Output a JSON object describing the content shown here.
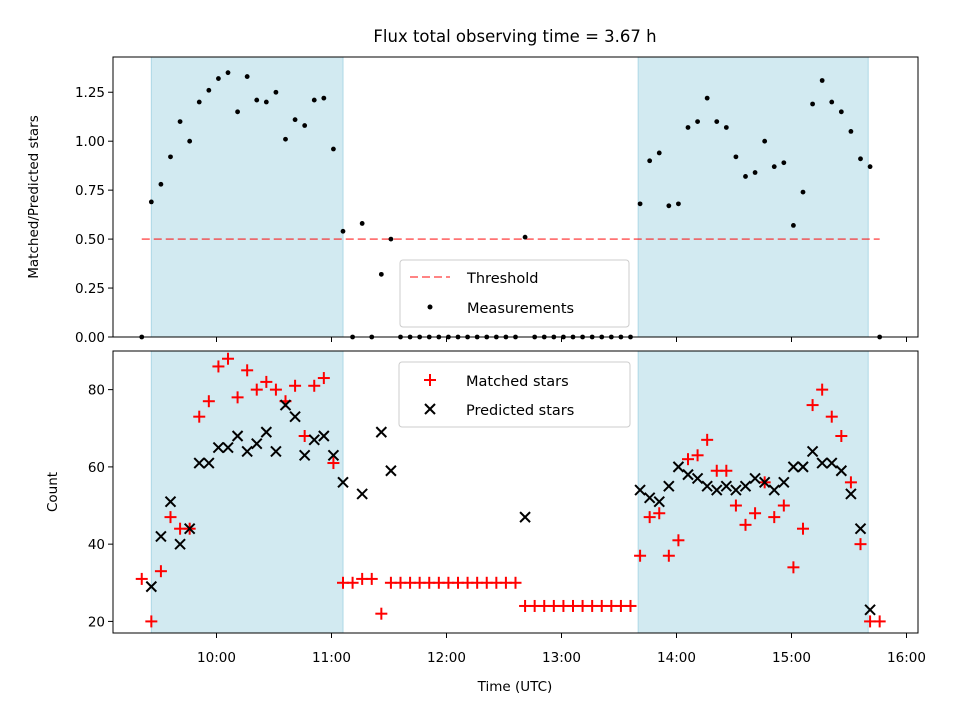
{
  "figure": {
    "title": "Flux total observing time = 3.67 h"
  },
  "colors": {
    "shade": "#add8e6",
    "threshold": "#ff0000",
    "matched": "#ff0000",
    "predicted": "#000000",
    "measurement": "#000000"
  },
  "chart_data": [
    {
      "type": "scatter",
      "ylabel": "Matched/Predicted stars",
      "xlabel": "",
      "xlim": [
        "09:06",
        "16:06"
      ],
      "ylim": [
        0,
        1.43
      ],
      "yticks": [
        0.0,
        0.25,
        0.5,
        0.75,
        1.0,
        1.25
      ],
      "ytick_labels": [
        "0.00",
        "0.25",
        "0.50",
        "0.75",
        "1.00",
        "1.25"
      ],
      "grid": false,
      "legend": {
        "placement": "lower center",
        "entries": [
          "Threshold",
          "Measurements"
        ]
      },
      "shaded_intervals": [
        [
          "09:26",
          "11:06"
        ],
        [
          "13:40",
          "15:40"
        ]
      ],
      "threshold": {
        "name": "Threshold",
        "value": 0.5,
        "x_start": "09:21",
        "x_end": "15:46"
      },
      "series": [
        {
          "name": "Measurements",
          "x": [
            "09:21",
            "09:26",
            "09:31",
            "09:36",
            "09:41",
            "09:46",
            "09:51",
            "09:56",
            "10:01",
            "10:06",
            "10:11",
            "10:16",
            "10:21",
            "10:26",
            "10:31",
            "10:36",
            "10:41",
            "10:46",
            "10:51",
            "10:56",
            "11:01",
            "11:06",
            "11:11",
            "11:16",
            "11:21",
            "11:26",
            "11:31",
            "11:36",
            "11:41",
            "11:46",
            "11:51",
            "11:56",
            "12:01",
            "12:06",
            "12:11",
            "12:16",
            "12:21",
            "12:26",
            "12:31",
            "12:36",
            "12:41",
            "12:46",
            "12:51",
            "12:56",
            "13:01",
            "13:06",
            "13:11",
            "13:16",
            "13:21",
            "13:26",
            "13:31",
            "13:36",
            "13:41",
            "13:46",
            "13:51",
            "13:56",
            "14:01",
            "14:06",
            "14:11",
            "14:16",
            "14:21",
            "14:26",
            "14:31",
            "14:36",
            "14:41",
            "14:46",
            "14:51",
            "14:56",
            "15:01",
            "15:06",
            "15:11",
            "15:16",
            "15:21",
            "15:26",
            "15:31",
            "15:36",
            "15:41",
            "15:46"
          ],
          "y": [
            0,
            0.69,
            0.78,
            0.92,
            1.1,
            1.0,
            1.2,
            1.26,
            1.32,
            1.35,
            1.15,
            1.33,
            1.21,
            1.2,
            1.25,
            1.01,
            1.11,
            1.08,
            1.21,
            1.22,
            0.96,
            0.54,
            0,
            0.58,
            0,
            0.32,
            0.5,
            0,
            0,
            0,
            0,
            0,
            0,
            0,
            0,
            0,
            0,
            0,
            0,
            0,
            0.51,
            0,
            0,
            0,
            0,
            0,
            0,
            0,
            0,
            0,
            0,
            0,
            0.68,
            0.9,
            0.94,
            0.67,
            0.68,
            1.07,
            1.1,
            1.22,
            1.1,
            1.07,
            0.92,
            0.82,
            0.84,
            1.0,
            0.87,
            0.89,
            0.57,
            0.74,
            1.19,
            1.31,
            1.2,
            1.15,
            1.05,
            0.91,
            0.87,
            0
          ]
        }
      ]
    },
    {
      "type": "scatter",
      "xlabel": "Time (UTC)",
      "ylabel": "Count",
      "xlim": [
        "09:06",
        "16:06"
      ],
      "ylim": [
        17,
        90
      ],
      "xticks": [
        "10:00",
        "11:00",
        "12:00",
        "13:00",
        "14:00",
        "15:00",
        "16:00"
      ],
      "yticks": [
        20,
        40,
        60,
        80
      ],
      "grid": false,
      "legend": {
        "placement": "upper center",
        "entries": [
          "Matched stars",
          "Predicted stars"
        ]
      },
      "shaded_intervals": [
        [
          "09:26",
          "11:06"
        ],
        [
          "13:40",
          "15:40"
        ]
      ],
      "series": [
        {
          "name": "Matched stars",
          "marker": "+",
          "x": [
            "09:21",
            "09:26",
            "09:31",
            "09:36",
            "09:41",
            "09:46",
            "09:51",
            "09:56",
            "10:01",
            "10:06",
            "10:11",
            "10:16",
            "10:21",
            "10:26",
            "10:31",
            "10:36",
            "10:41",
            "10:46",
            "10:51",
            "10:56",
            "11:01",
            "11:06",
            "11:11",
            "11:16",
            "11:21",
            "11:26",
            "11:31",
            "11:36",
            "11:41",
            "11:46",
            "11:51",
            "11:56",
            "12:01",
            "12:06",
            "12:11",
            "12:16",
            "12:21",
            "12:26",
            "12:31",
            "12:36",
            "12:41",
            "12:46",
            "12:51",
            "12:56",
            "13:01",
            "13:06",
            "13:11",
            "13:16",
            "13:21",
            "13:26",
            "13:31",
            "13:36",
            "13:41",
            "13:46",
            "13:51",
            "13:56",
            "14:01",
            "14:06",
            "14:11",
            "14:16",
            "14:21",
            "14:26",
            "14:31",
            "14:36",
            "14:41",
            "14:46",
            "14:51",
            "14:56",
            "15:01",
            "15:06",
            "15:11",
            "15:16",
            "15:21",
            "15:26",
            "15:31",
            "15:36",
            "15:41",
            "15:46"
          ],
          "y": [
            31,
            20,
            33,
            47,
            44,
            44,
            73,
            77,
            86,
            88,
            78,
            85,
            80,
            82,
            80,
            77,
            81,
            68,
            81,
            83,
            61,
            30,
            30,
            31,
            31,
            22,
            30,
            30,
            30,
            30,
            30,
            30,
            30,
            30,
            30,
            30,
            30,
            30,
            30,
            30,
            24,
            24,
            24,
            24,
            24,
            24,
            24,
            24,
            24,
            24,
            24,
            24,
            37,
            47,
            48,
            37,
            41,
            62,
            63,
            67,
            59,
            59,
            50,
            45,
            48,
            56,
            47,
            50,
            34,
            44,
            76,
            80,
            73,
            68,
            56,
            40,
            20,
            20
          ]
        },
        {
          "name": "Predicted stars",
          "marker": "x",
          "x": [
            "09:26",
            "09:31",
            "09:36",
            "09:41",
            "09:46",
            "09:51",
            "09:56",
            "10:01",
            "10:06",
            "10:11",
            "10:16",
            "10:21",
            "10:26",
            "10:31",
            "10:36",
            "10:41",
            "10:46",
            "10:51",
            "10:56",
            "11:01",
            "11:06",
            "11:16",
            "11:26",
            "11:31",
            "12:41",
            "13:41",
            "13:46",
            "13:51",
            "13:56",
            "14:01",
            "14:06",
            "14:11",
            "14:16",
            "14:21",
            "14:26",
            "14:31",
            "14:36",
            "14:41",
            "14:46",
            "14:51",
            "14:56",
            "15:01",
            "15:06",
            "15:11",
            "15:16",
            "15:21",
            "15:26",
            "15:31",
            "15:36",
            "15:41"
          ],
          "y": [
            29,
            42,
            51,
            40,
            44,
            61,
            61,
            65,
            65,
            68,
            64,
            66,
            69,
            64,
            76,
            73,
            63,
            67,
            68,
            63,
            56,
            53,
            69,
            59,
            47,
            54,
            52,
            51,
            55,
            60,
            58,
            57,
            55,
            54,
            55,
            54,
            55,
            57,
            56,
            54,
            56,
            60,
            60,
            64,
            61,
            61,
            59,
            53,
            44,
            23
          ]
        }
      ]
    }
  ]
}
